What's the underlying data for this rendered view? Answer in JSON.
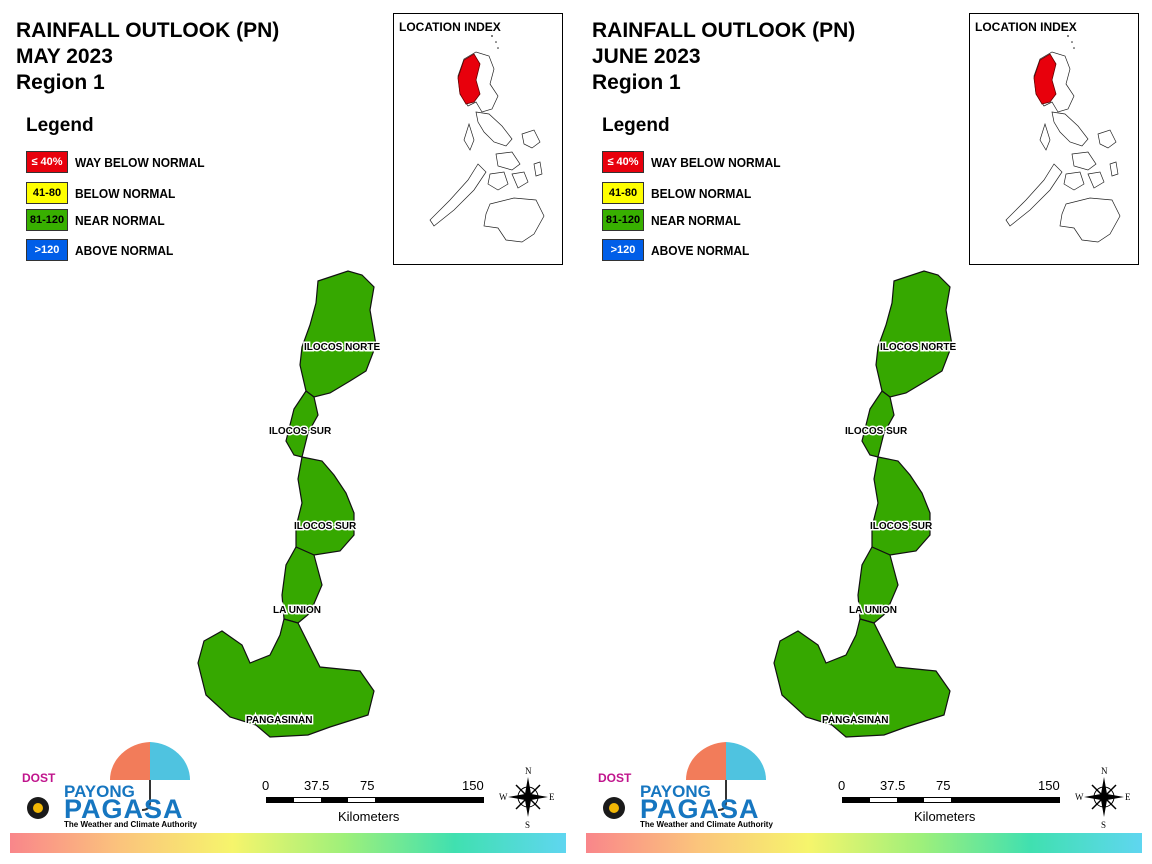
{
  "panels": [
    {
      "title_lines": [
        "RAINFALL OUTLOOK (PN)",
        "MAY 2023",
        "Region 1"
      ],
      "legend_title": "Legend",
      "legend": [
        {
          "code": "≤ 40%",
          "label": "WAY BELOW NORMAL",
          "color": "#e8000c",
          "text_color": "#ffffff"
        },
        {
          "code": "41-80",
          "label": "BELOW NORMAL",
          "color": "#ffff00",
          "text_color": "#000000"
        },
        {
          "code": "81-120",
          "label": "NEAR NORMAL",
          "color": "#38b000",
          "text_color": "#000000"
        },
        {
          "code": ">120",
          "label": "ABOVE NORMAL",
          "color": "#005ee8",
          "text_color": "#ffffff"
        }
      ],
      "location_index": "LOCATION INDEX",
      "provinces": [
        "ILOCOS NORTE",
        "ILOCOS SUR",
        "ILOCOS SUR",
        "LA UNION",
        "PANGASINAN"
      ],
      "province_category": "NEAR NORMAL",
      "scale": {
        "ticks": [
          "0",
          "37.5",
          "75",
          "150"
        ],
        "unit": "Kilometers"
      },
      "compass": {
        "n": "N",
        "e": "E",
        "s": "S",
        "w": "W"
      },
      "logo": {
        "dost": "DOST",
        "payong": "PAYONG",
        "pagasa": "PAGASA",
        "tagline": "The Weather and Climate Authority"
      }
    },
    {
      "title_lines": [
        "RAINFALL OUTLOOK (PN)",
        "JUNE 2023",
        "Region 1"
      ],
      "legend_title": "Legend",
      "legend": [
        {
          "code": "≤ 40%",
          "label": "WAY BELOW NORMAL",
          "color": "#e8000c",
          "text_color": "#ffffff"
        },
        {
          "code": "41-80",
          "label": "BELOW NORMAL",
          "color": "#ffff00",
          "text_color": "#000000"
        },
        {
          "code": "81-120",
          "label": "NEAR NORMAL",
          "color": "#38b000",
          "text_color": "#000000"
        },
        {
          "code": ">120",
          "label": "ABOVE NORMAL",
          "color": "#005ee8",
          "text_color": "#ffffff"
        }
      ],
      "location_index": "LOCATION INDEX",
      "provinces": [
        "ILOCOS NORTE",
        "ILOCOS SUR",
        "ILOCOS SUR",
        "LA UNION",
        "PANGASINAN"
      ],
      "province_category": "NEAR NORMAL",
      "scale": {
        "ticks": [
          "0",
          "37.5",
          "75",
          "150"
        ],
        "unit": "Kilometers"
      },
      "compass": {
        "n": "N",
        "e": "E",
        "s": "S",
        "w": "W"
      },
      "logo": {
        "dost": "DOST",
        "payong": "PAYONG",
        "pagasa": "PAGASA",
        "tagline": "The Weather and Climate Authority"
      }
    }
  ],
  "colors": {
    "region_fill": "#36a800",
    "highlight": "#e8000c"
  }
}
